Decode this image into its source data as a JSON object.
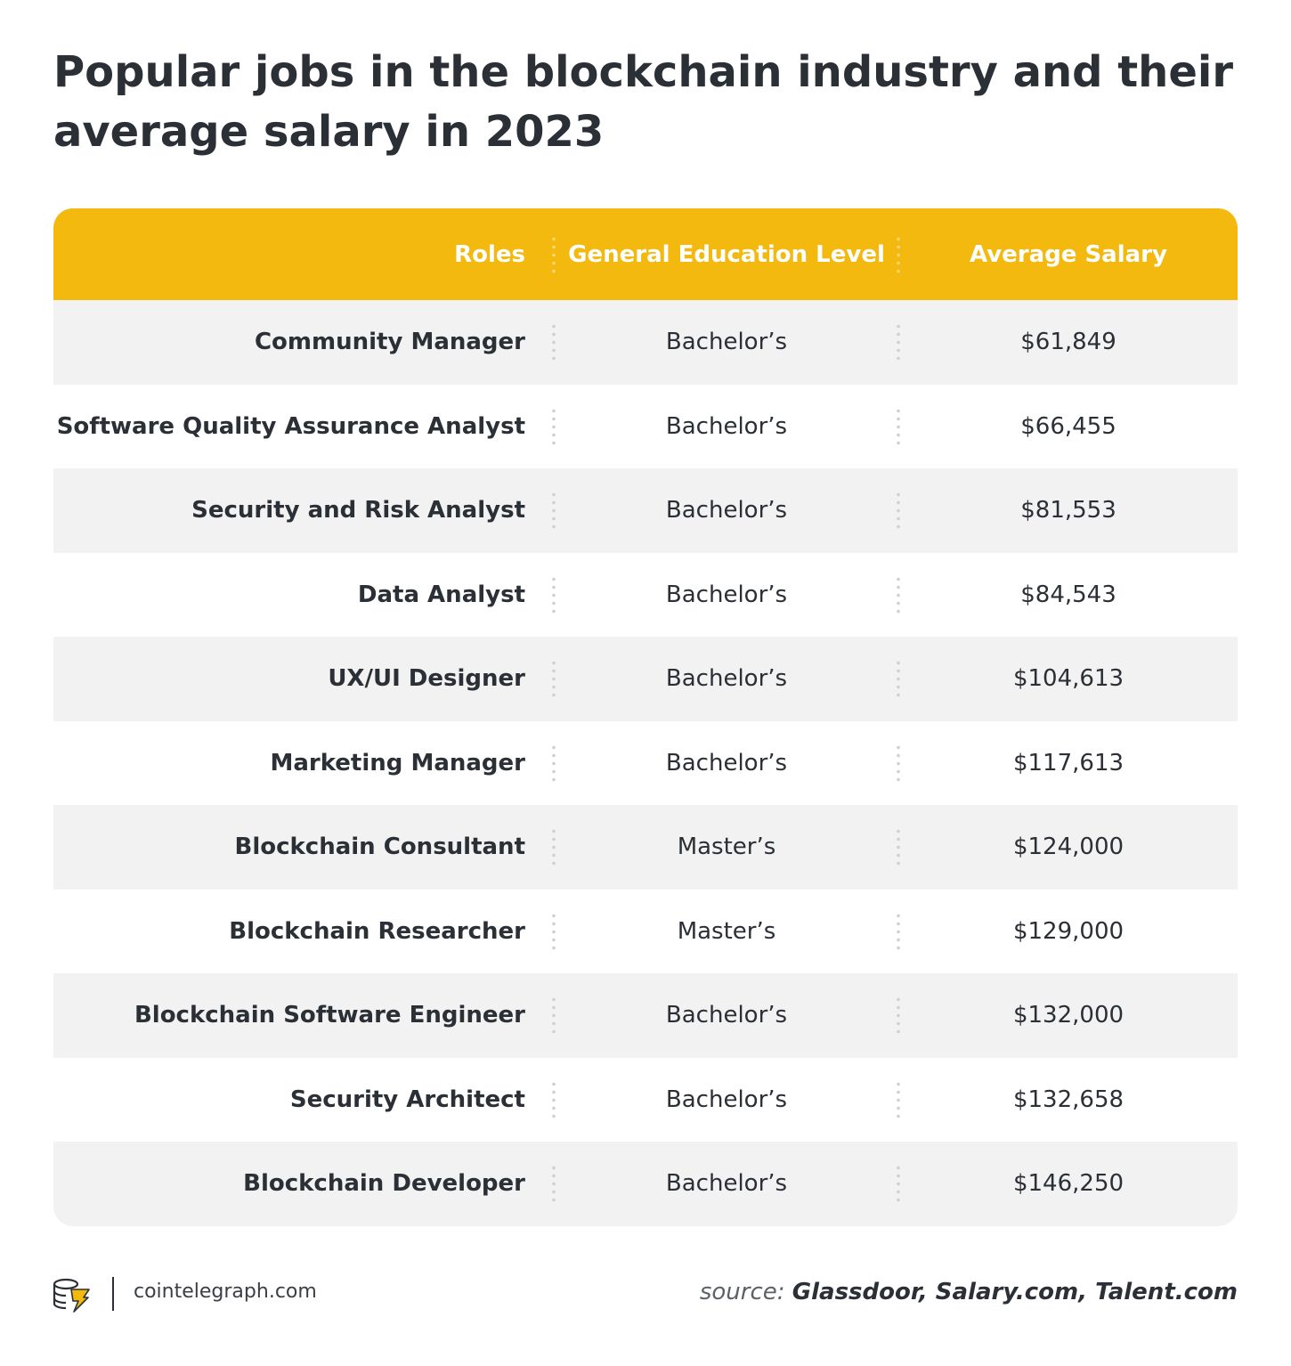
{
  "title": "Popular jobs in the blockchain industry and their average salary in 2023",
  "chart_data": {
    "type": "table",
    "title": "Popular jobs in the blockchain industry and their average salary in 2023",
    "columns": [
      "Roles",
      "General Education Level",
      "Average Salary"
    ],
    "rows": [
      {
        "role": "Community Manager",
        "education": "Bachelor’s",
        "salary": "$61,849"
      },
      {
        "role": "Software Quality Assurance Analyst",
        "education": "Bachelor’s",
        "salary": "$66,455"
      },
      {
        "role": "Security and Risk Analyst",
        "education": "Bachelor’s",
        "salary": "$81,553"
      },
      {
        "role": "Data Analyst",
        "education": "Bachelor’s",
        "salary": "$84,543"
      },
      {
        "role": "UX/UI Designer",
        "education": "Bachelor’s",
        "salary": "$104,613"
      },
      {
        "role": "Marketing Manager",
        "education": "Bachelor’s",
        "salary": "$117,613"
      },
      {
        "role": "Blockchain Consultant",
        "education": "Master’s",
        "salary": "$124,000"
      },
      {
        "role": "Blockchain Researcher",
        "education": "Master’s",
        "salary": "$129,000"
      },
      {
        "role": "Blockchain Software Engineer",
        "education": "Bachelor’s",
        "salary": "$132,000"
      },
      {
        "role": "Security Architect",
        "education": "Bachelor’s",
        "salary": "$132,658"
      },
      {
        "role": "Blockchain Developer",
        "education": "Bachelor’s",
        "salary": "$146,250"
      }
    ],
    "header_color": "#f4b90e",
    "stripe_color": "#f2f2f2"
  },
  "footer": {
    "logo_icon": "cointelegraph-logo-icon",
    "site": "cointelegraph.com",
    "source_label": "source:",
    "source_names": "Glassdoor, Salary.com, Talent.com"
  }
}
